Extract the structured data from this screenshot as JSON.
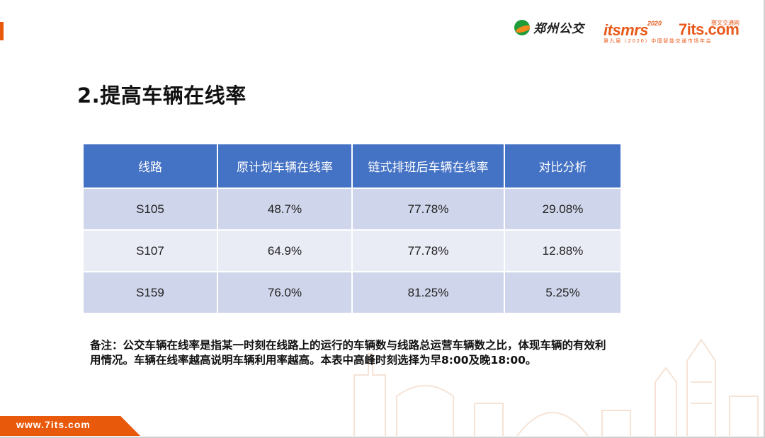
{
  "header": {
    "zhengzhou_logo_text": "郑州公交",
    "itsmrs_brand": "itsmrs",
    "itsmrs_year": "2020",
    "sevenits_brand": "7its.com",
    "sevenits_cn": "赛文交通网",
    "conference_line": "第九届（2020）中国智能交通市场年会"
  },
  "slide": {
    "title": "2.提高车辆在线率"
  },
  "table": {
    "headers": [
      "线路",
      "原计划车辆在线率",
      "链式排班后车辆在线率",
      "对比分析"
    ],
    "rows": [
      [
        "S105",
        "48.7%",
        "77.78%",
        "29.08%"
      ],
      [
        "S107",
        "64.9%",
        "77.78%",
        "12.88%"
      ],
      [
        "S159",
        "76.0%",
        "81.25%",
        "5.25%"
      ]
    ]
  },
  "note": "备注：公交车辆在线率是指某一时刻在线路上的运行的车辆数与线路总运营车辆数之比，体现车辆的有效利用情况。车辆在线率越高说明车辆利用率越高。本表中高峰时刻选择为早8:00及晚18:00。",
  "footer": {
    "url": "www.7its.com"
  },
  "colors": {
    "accent": "#e8590c",
    "table_header": "#4472c4",
    "row_dark": "#cfd5ea",
    "row_light": "#e9ebf5"
  }
}
